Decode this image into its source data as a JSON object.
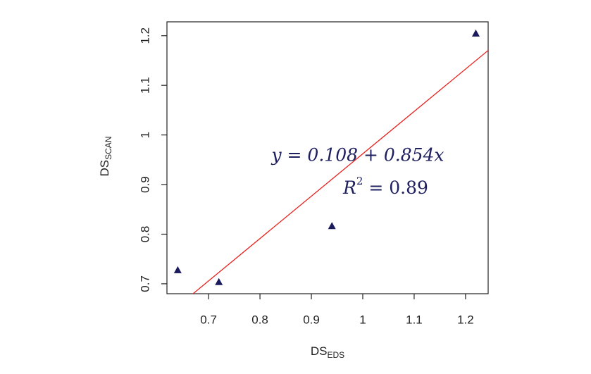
{
  "chart_data": {
    "type": "scatter",
    "x_label": {
      "text": "DS",
      "sub": "EDS"
    },
    "y_label": {
      "text": "DS",
      "sub": "SCAN"
    },
    "x": [
      0.64,
      0.72,
      0.94,
      1.22
    ],
    "series": [
      {
        "color": "#1a1a5c",
        "values": [
          0.727,
          0.703,
          0.816,
          1.204
        ]
      }
    ],
    "xlim": [
      0.619,
      1.244
    ],
    "ylim": [
      0.68,
      1.228
    ],
    "xticks": [
      0.7,
      0.8,
      0.9,
      1.0,
      1.1,
      1.2
    ],
    "yticks": [
      0.7,
      0.8,
      0.9,
      1.0,
      1.1,
      1.2
    ],
    "fit": {
      "intercept": 0.108,
      "slope": 0.854,
      "color": "#e8201c"
    },
    "annotations": {
      "equation": "y = 0.108 + 0.854x",
      "r_squared": {
        "text": "R",
        "sup": "2",
        "rest": " = 0.89"
      }
    }
  }
}
